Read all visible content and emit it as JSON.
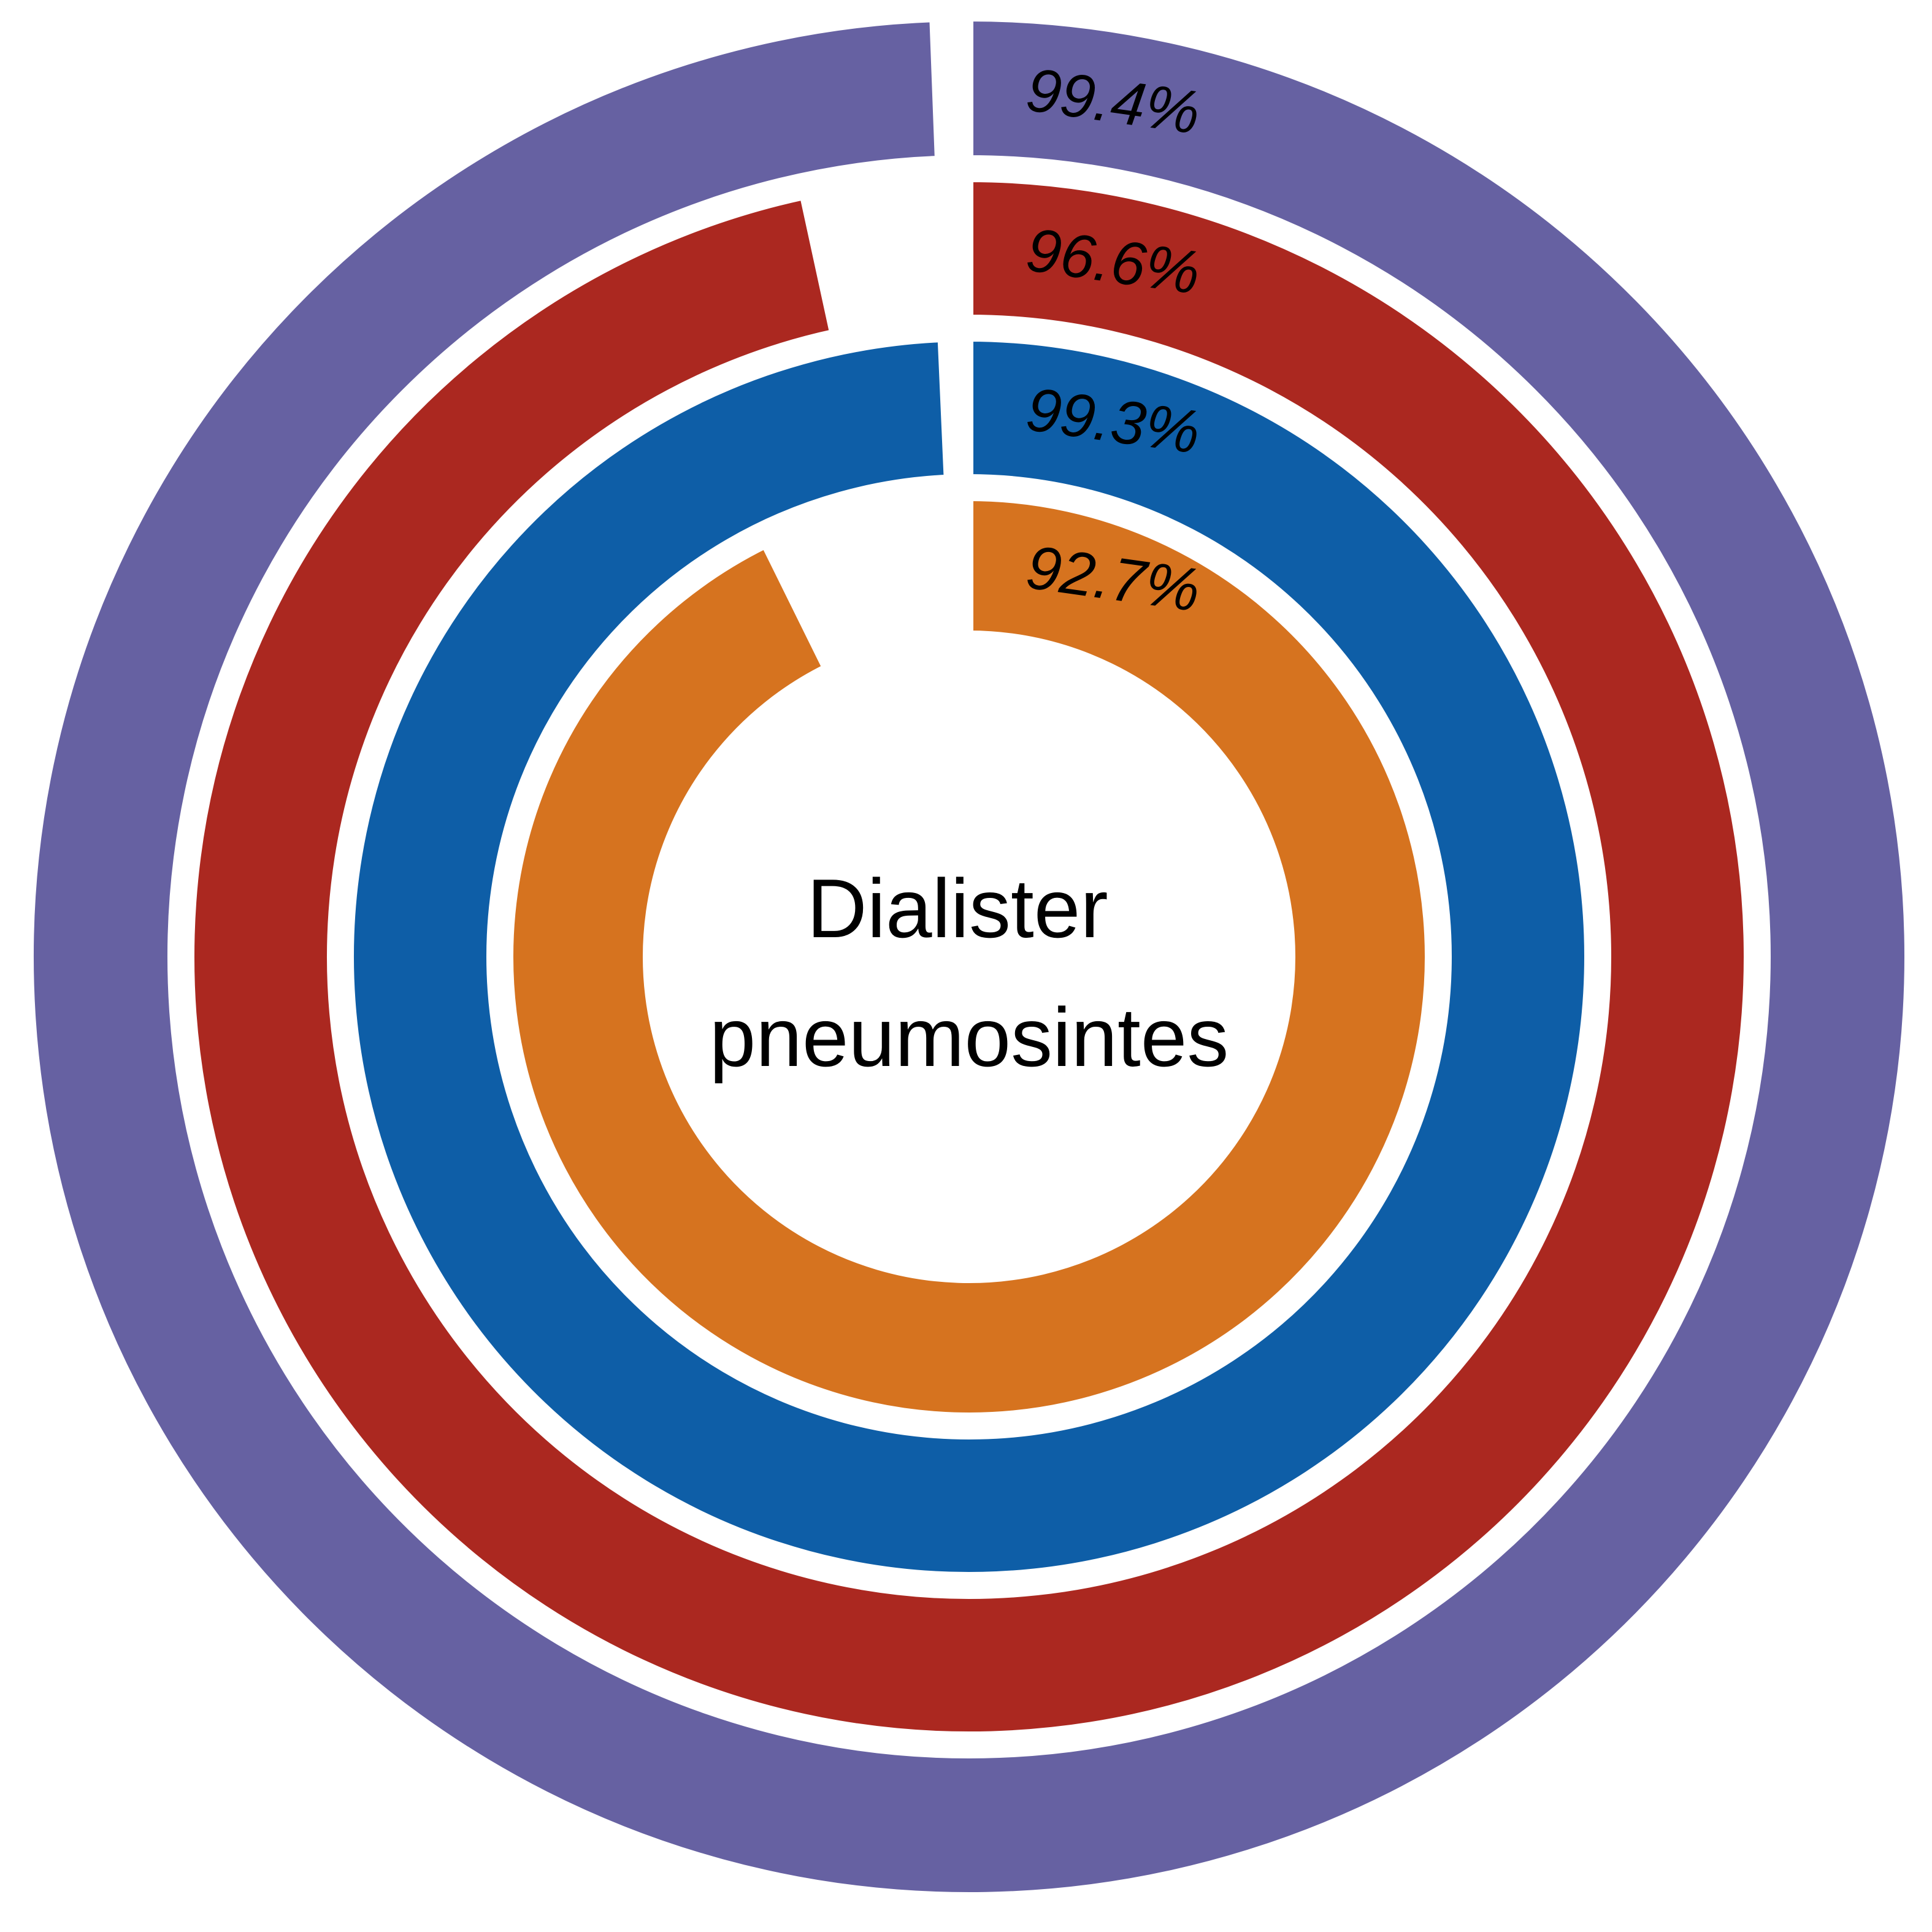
{
  "chart_data": {
    "type": "radial-bar",
    "center_label": [
      "Dialister",
      "pneumosintes"
    ],
    "rings": [
      {
        "value": 99.4,
        "label": "99.4%",
        "color": "#6661a2"
      },
      {
        "value": 96.6,
        "label": "96.6%",
        "color": "#ab2820"
      },
      {
        "value": 99.3,
        "label": "99.3%",
        "color": "#0e5ea7"
      },
      {
        "value": 92.7,
        "label": "92.7%",
        "color": "#d6731f"
      }
    ]
  }
}
